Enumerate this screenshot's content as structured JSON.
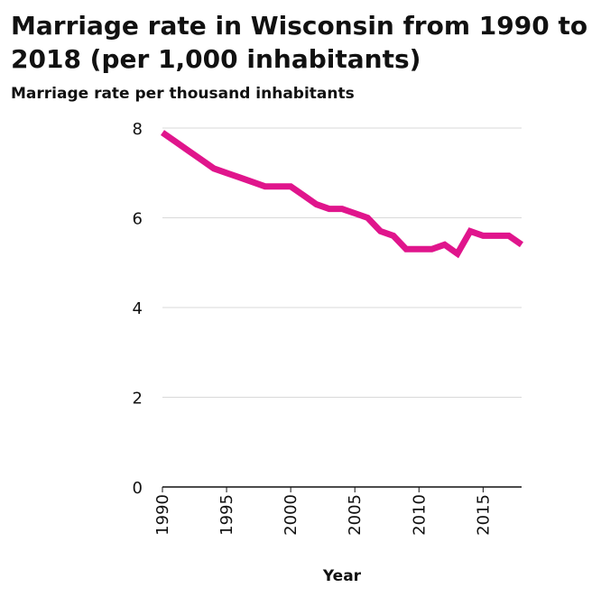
{
  "chart_data": {
    "type": "line",
    "title": "Marriage rate in Wisconsin from 1990 to 2018 (per 1,000 inhabitants)",
    "xlabel": "Year",
    "ylabel": "Marriage rate per thousand inhabitants",
    "xlim": [
      1990,
      2018
    ],
    "ylim": [
      0,
      8
    ],
    "x_ticks": [
      1990,
      1995,
      2000,
      2005,
      2010,
      2015
    ],
    "y_ticks": [
      0,
      2,
      4,
      6,
      8
    ],
    "grid": "horizontal",
    "line_color": "#e0158c",
    "series": [
      {
        "x": [
          1990,
          1991,
          1992,
          1993,
          1994,
          1995,
          1996,
          1997,
          1998,
          1999,
          2000,
          2001,
          2002,
          2003,
          2004,
          2005,
          2006,
          2007,
          2008,
          2009,
          2010,
          2011,
          2012,
          2013,
          2014,
          2015,
          2016,
          2017,
          2018
        ],
        "values": [
          7.9,
          7.7,
          7.5,
          7.3,
          7.1,
          7.0,
          6.9,
          6.8,
          6.7,
          6.7,
          6.7,
          6.5,
          6.3,
          6.2,
          6.2,
          6.1,
          6.0,
          5.7,
          5.6,
          5.3,
          5.3,
          5.3,
          5.4,
          5.2,
          5.7,
          5.6,
          5.6,
          5.6,
          5.4
        ]
      }
    ]
  }
}
